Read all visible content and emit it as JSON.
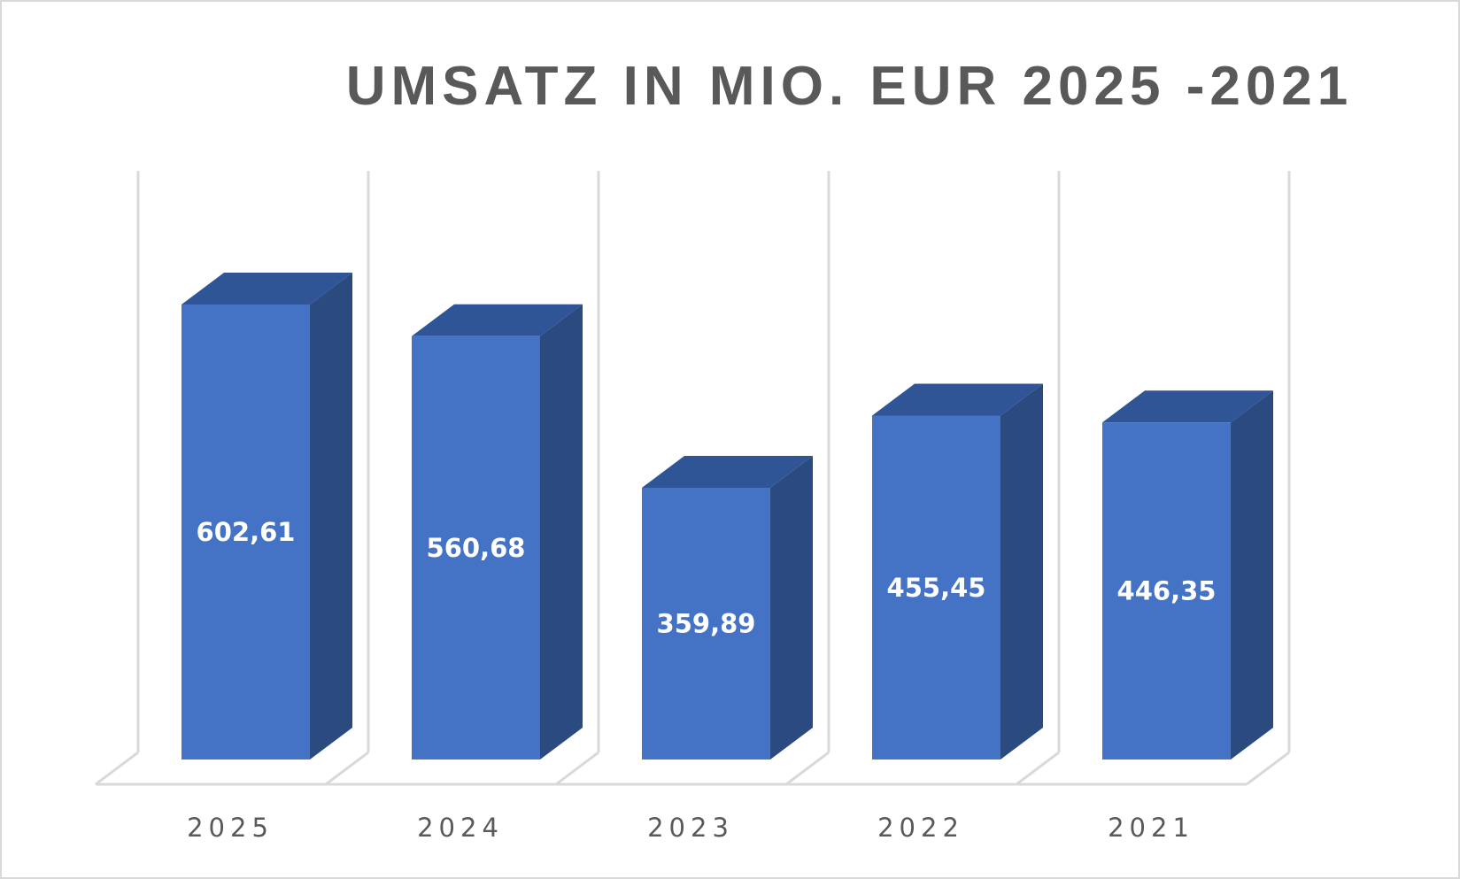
{
  "chart_data": {
    "type": "bar",
    "title": "UMSATZ IN MIO. EUR 2025 -2021",
    "categories": [
      "2025",
      "2024",
      "2023",
      "2022",
      "2021"
    ],
    "values": [
      602.61,
      560.68,
      359.89,
      455.45,
      446.35
    ],
    "data_labels": [
      "602,61",
      "560,68",
      "359,89",
      "455,45",
      "446,35"
    ],
    "xlabel": "",
    "ylabel": "",
    "ylim": [
      0,
      700
    ],
    "style": "3d-column",
    "grid": "vertical",
    "legend": "none",
    "colors": {
      "bar_front": "#4472c4",
      "bar_top": "#2f5597",
      "bar_side": "#2a4a80",
      "grid": "#d9d9d9",
      "text": "#595959"
    }
  }
}
